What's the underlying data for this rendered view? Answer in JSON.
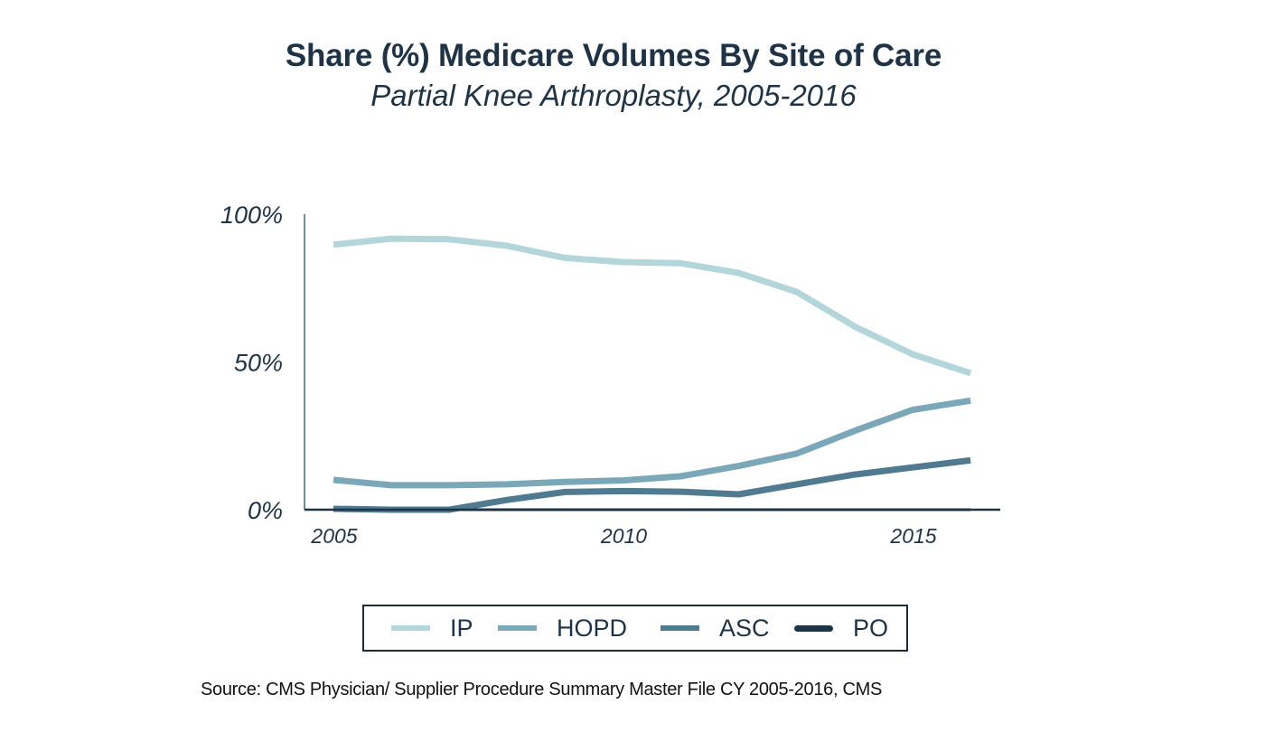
{
  "chart_data": {
    "type": "line",
    "title": "Share (%) Medicare Volumes By Site of Care",
    "subtitle": "Partial Knee Arthroplasty, 2005-2016",
    "xlabel": "",
    "ylabel": "",
    "x": [
      2005,
      2006,
      2007,
      2008,
      2009,
      2010,
      2011,
      2012,
      2013,
      2014,
      2015,
      2016
    ],
    "xlim": [
      2005,
      2016.5
    ],
    "ylim": [
      0,
      100
    ],
    "x_ticks": [
      2005,
      2010,
      2015
    ],
    "x_tick_labels": [
      "2005",
      "2010",
      "2015"
    ],
    "y_ticks": [
      0,
      50,
      100
    ],
    "y_tick_labels": [
      "0%",
      "50%",
      "100%"
    ],
    "grid": false,
    "legend_position": "bottom",
    "series": [
      {
        "name": "IP",
        "color": "#b3d6da",
        "values": [
          89.7,
          91.7,
          91.5,
          89.3,
          85.2,
          83.8,
          83.4,
          80.1,
          73.7,
          62.0,
          52.6,
          46.2
        ]
      },
      {
        "name": "HOPD",
        "color": "#7aa8b8",
        "values": [
          10.1,
          8.3,
          8.3,
          8.6,
          9.4,
          9.9,
          11.3,
          14.8,
          19.0,
          26.7,
          33.8,
          36.9
        ]
      },
      {
        "name": "ASC",
        "color": "#4f7a90",
        "values": [
          0.3,
          0.0,
          0.0,
          3.3,
          6.0,
          6.3,
          6.1,
          5.2,
          8.6,
          11.9,
          14.3,
          16.7
        ]
      },
      {
        "name": "PO",
        "color": "#1e3447",
        "values": [
          0,
          0,
          0,
          0,
          0,
          0,
          0,
          0,
          0,
          0,
          0,
          0
        ]
      }
    ]
  },
  "legend": {
    "items": [
      {
        "label": "IP",
        "color": "#b3d6da"
      },
      {
        "label": "HOPD",
        "color": "#7aa8b8"
      },
      {
        "label": "ASC",
        "color": "#4f7a90"
      },
      {
        "label": "PO",
        "color": "#1e3447"
      }
    ]
  },
  "source": "Source: CMS Physician/ Supplier Procedure Summary Master File CY 2005-2016, CMS",
  "colors": {
    "title": "#1f3347",
    "y_axis": "#6f8f95",
    "x_axis": "#1e3447"
  }
}
